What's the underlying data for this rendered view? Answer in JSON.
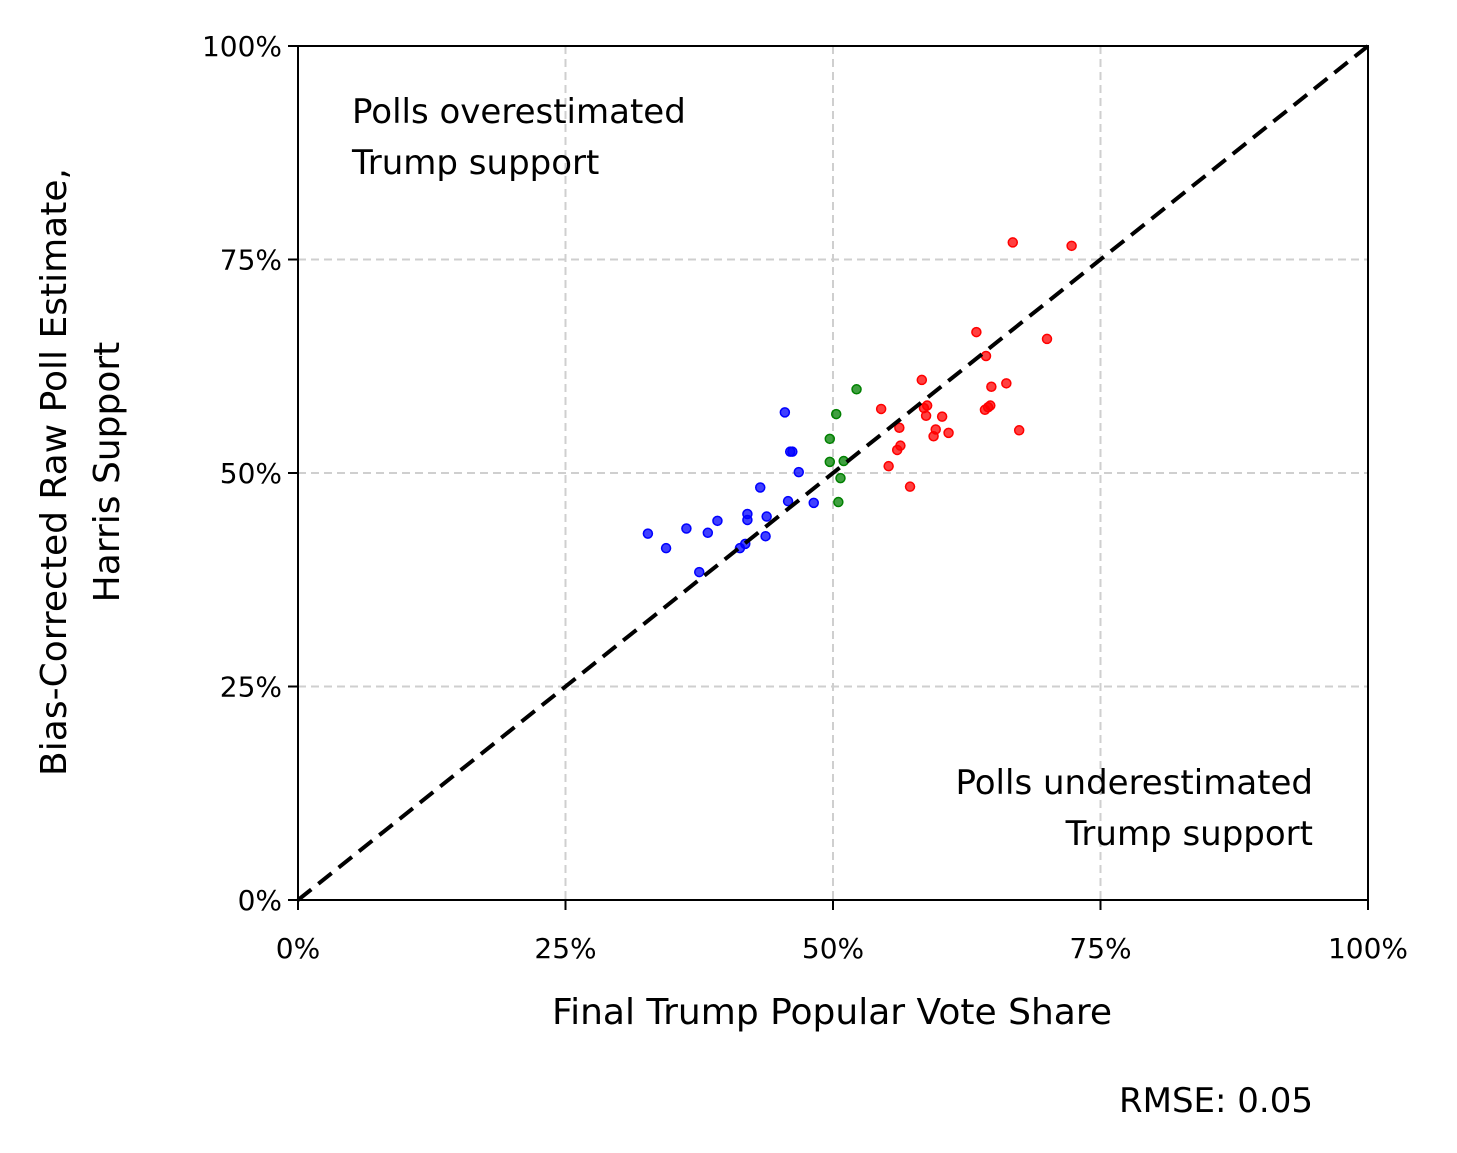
{
  "chart_data": {
    "type": "scatter",
    "title": "",
    "xlabel": "Final Trump Popular Vote Share",
    "ylabel_lines": [
      "Bias-Corrected Raw Poll Estimate,",
      "Harris Support"
    ],
    "xlim": [
      0,
      1
    ],
    "ylim": [
      0,
      1
    ],
    "x_ticks": [
      0,
      0.25,
      0.5,
      0.75,
      1.0
    ],
    "y_ticks": [
      0,
      0.25,
      0.5,
      0.75,
      1.0
    ],
    "x_tick_labels": [
      "0%",
      "25%",
      "50%",
      "75%",
      "100%"
    ],
    "y_tick_labels": [
      "0%",
      "25%",
      "50%",
      "75%",
      "100%"
    ],
    "grid": true,
    "reference_line": {
      "type": "diagonal",
      "from": [
        0,
        0
      ],
      "to": [
        1,
        1
      ],
      "style": "dashed",
      "color": "#000000"
    },
    "annotations": {
      "upper_left": [
        "Polls overestimated",
        "Trump support"
      ],
      "lower_right": [
        "Polls underestimated",
        "Trump support"
      ]
    },
    "footer": "RMSE: 0.05",
    "series": [
      {
        "color": "#0000ff",
        "points": [
          [
            0.327,
            0.429
          ],
          [
            0.344,
            0.412
          ],
          [
            0.363,
            0.435
          ],
          [
            0.375,
            0.384
          ],
          [
            0.383,
            0.43
          ],
          [
            0.392,
            0.444
          ],
          [
            0.413,
            0.412
          ],
          [
            0.418,
            0.417
          ],
          [
            0.42,
            0.452
          ],
          [
            0.42,
            0.445
          ],
          [
            0.432,
            0.483
          ],
          [
            0.437,
            0.426
          ],
          [
            0.438,
            0.449
          ],
          [
            0.455,
            0.571
          ],
          [
            0.458,
            0.467
          ],
          [
            0.46,
            0.525
          ],
          [
            0.462,
            0.525
          ],
          [
            0.468,
            0.501
          ],
          [
            0.482,
            0.465
          ]
        ]
      },
      {
        "color": "#008000",
        "points": [
          [
            0.497,
            0.54
          ],
          [
            0.497,
            0.513
          ],
          [
            0.503,
            0.569
          ],
          [
            0.505,
            0.466
          ],
          [
            0.507,
            0.494
          ],
          [
            0.51,
            0.514
          ],
          [
            0.522,
            0.598
          ]
        ]
      },
      {
        "color": "#ff0000",
        "points": [
          [
            0.545,
            0.575
          ],
          [
            0.552,
            0.508
          ],
          [
            0.56,
            0.527
          ],
          [
            0.562,
            0.553
          ],
          [
            0.563,
            0.532
          ],
          [
            0.572,
            0.484
          ],
          [
            0.583,
            0.609
          ],
          [
            0.585,
            0.576
          ],
          [
            0.587,
            0.567
          ],
          [
            0.588,
            0.579
          ],
          [
            0.594,
            0.543
          ],
          [
            0.596,
            0.551
          ],
          [
            0.602,
            0.566
          ],
          [
            0.608,
            0.547
          ],
          [
            0.634,
            0.665
          ],
          [
            0.642,
            0.574
          ],
          [
            0.643,
            0.637
          ],
          [
            0.645,
            0.577
          ],
          [
            0.647,
            0.579
          ],
          [
            0.648,
            0.601
          ],
          [
            0.662,
            0.605
          ],
          [
            0.668,
            0.77
          ],
          [
            0.674,
            0.55
          ],
          [
            0.7,
            0.657
          ],
          [
            0.723,
            0.766
          ]
        ]
      }
    ]
  }
}
